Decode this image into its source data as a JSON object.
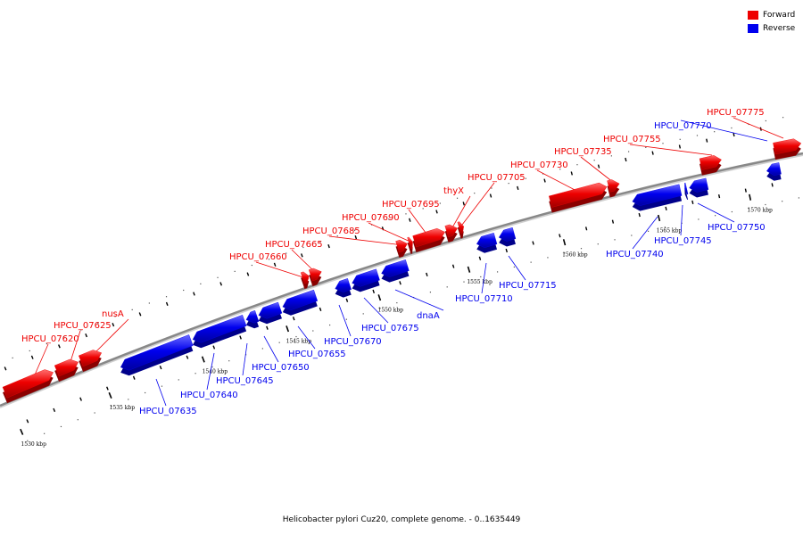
{
  "legend": {
    "forward": {
      "label": "Forward",
      "color": "#ee0000"
    },
    "reverse": {
      "label": "Reverse",
      "color": "#0000ee"
    }
  },
  "caption": "Helicobacter pylori Cuz20, complete genome. - 0..1635449",
  "backbone_color": "#888888",
  "tick_labels": [
    "1530 kbp",
    "1535 kbp",
    "1540 kbp",
    "1545 kbp",
    "1550 kbp",
    "1555 kbp",
    "1560 kbp",
    "1565 kbp",
    "1570 kbp"
  ],
  "genes": [
    {
      "name": "HPCU_07620",
      "strand": "forward"
    },
    {
      "name": "HPCU_07625",
      "strand": "forward"
    },
    {
      "name": "nusA",
      "strand": "forward"
    },
    {
      "name": "HPCU_07635",
      "strand": "reverse"
    },
    {
      "name": "HPCU_07640",
      "strand": "reverse"
    },
    {
      "name": "HPCU_07645",
      "strand": "reverse"
    },
    {
      "name": "HPCU_07650",
      "strand": "reverse"
    },
    {
      "name": "HPCU_07655",
      "strand": "reverse"
    },
    {
      "name": "HPCU_07660",
      "strand": "forward"
    },
    {
      "name": "HPCU_07665",
      "strand": "forward"
    },
    {
      "name": "HPCU_07670",
      "strand": "reverse"
    },
    {
      "name": "HPCU_07675",
      "strand": "reverse"
    },
    {
      "name": "dnaA",
      "strand": "reverse"
    },
    {
      "name": "HPCU_07685",
      "strand": "forward"
    },
    {
      "name": "HPCU_07690",
      "strand": "forward"
    },
    {
      "name": "HPCU_07695",
      "strand": "forward"
    },
    {
      "name": "thyX",
      "strand": "forward"
    },
    {
      "name": "HPCU_07705",
      "strand": "forward"
    },
    {
      "name": "HPCU_07710",
      "strand": "reverse"
    },
    {
      "name": "HPCU_07715",
      "strand": "reverse"
    },
    {
      "name": "HPCU_07730",
      "strand": "forward"
    },
    {
      "name": "HPCU_07735",
      "strand": "forward"
    },
    {
      "name": "HPCU_07740",
      "strand": "reverse"
    },
    {
      "name": "HPCU_07745",
      "strand": "reverse"
    },
    {
      "name": "HPCU_07750",
      "strand": "reverse"
    },
    {
      "name": "HPCU_07755",
      "strand": "forward"
    },
    {
      "name": "HPCU_07770",
      "strand": "reverse"
    },
    {
      "name": "HPCU_07775",
      "strand": "forward"
    }
  ]
}
